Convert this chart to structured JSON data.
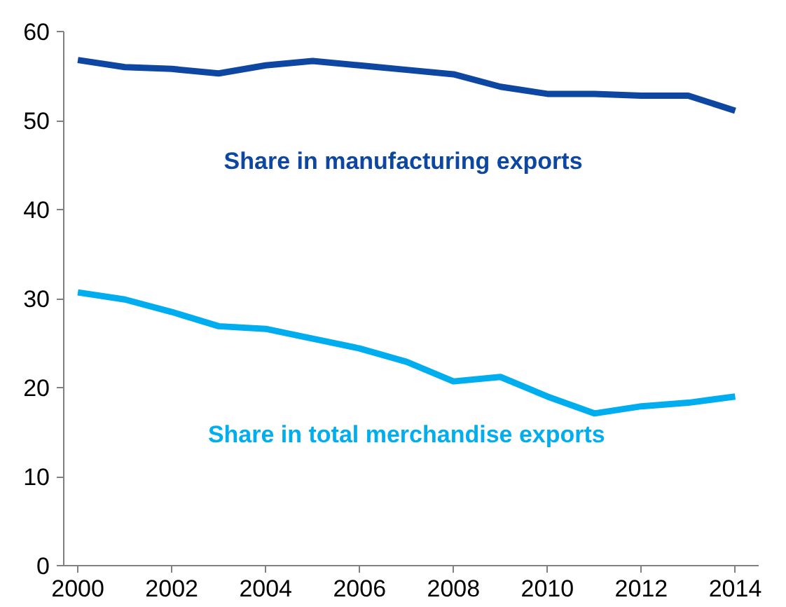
{
  "chart_data": {
    "type": "line",
    "x": [
      2000,
      2001,
      2002,
      2003,
      2004,
      2005,
      2006,
      2007,
      2008,
      2009,
      2010,
      2011,
      2012,
      2013,
      2014
    ],
    "series": [
      {
        "name": "Share in manufacturing  exports",
        "color": "#0d47a1",
        "values": [
          56.8,
          56,
          55.8,
          55.3,
          56.2,
          56.7,
          56.2,
          55.7,
          55.2,
          53.8,
          53,
          53,
          52.8,
          52.8,
          51.1
        ]
      },
      {
        "name": "Share in total merchandise exports",
        "color": "#00aeef",
        "values": [
          30.7,
          29.9,
          28.5,
          26.9,
          26.6,
          25.5,
          24.4,
          22.9,
          20.7,
          21.2,
          19,
          17.1,
          17.9,
          18.3,
          19
        ]
      }
    ],
    "xlim": [
      1999.7,
      2014.5
    ],
    "xticks": [
      2000,
      2002,
      2004,
      2006,
      2008,
      2010,
      2012,
      2014
    ],
    "ylim": [
      0,
      60
    ],
    "yticks": [
      0,
      10,
      20,
      30,
      40,
      50,
      60
    ],
    "grid": false,
    "marker": "none",
    "line_style": "solid"
  }
}
